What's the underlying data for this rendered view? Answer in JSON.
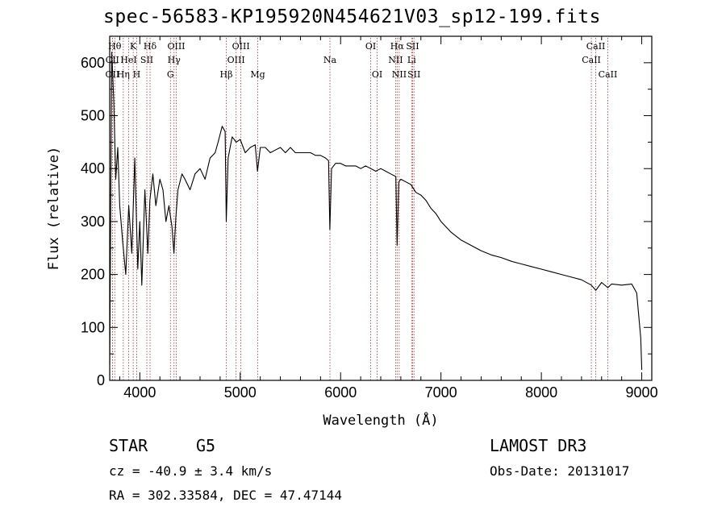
{
  "chart_data": {
    "type": "line",
    "title": "spec-56583-KP195920N454621V03_sp12-199.fits",
    "xlabel": "Wavelength (Å)",
    "ylabel": "Flux (relative)",
    "xlim": [
      3700,
      9100
    ],
    "ylim": [
      0,
      650
    ],
    "xticks": [
      4000,
      5000,
      6000,
      7000,
      8000,
      9000
    ],
    "yticks": [
      0,
      100,
      200,
      300,
      400,
      500,
      600
    ],
    "series": [
      {
        "name": "flux",
        "color": "#000000",
        "points": [
          [
            3700,
            30
          ],
          [
            3720,
            620
          ],
          [
            3740,
            530
          ],
          [
            3760,
            380
          ],
          [
            3780,
            440
          ],
          [
            3800,
            330
          ],
          [
            3830,
            260
          ],
          [
            3860,
            200
          ],
          [
            3890,
            330
          ],
          [
            3920,
            240
          ],
          [
            3950,
            420
          ],
          [
            3980,
            210
          ],
          [
            4000,
            300
          ],
          [
            4020,
            180
          ],
          [
            4050,
            360
          ],
          [
            4080,
            240
          ],
          [
            4100,
            340
          ],
          [
            4130,
            390
          ],
          [
            4160,
            330
          ],
          [
            4200,
            380
          ],
          [
            4230,
            360
          ],
          [
            4260,
            300
          ],
          [
            4290,
            330
          ],
          [
            4320,
            290
          ],
          [
            4340,
            240
          ],
          [
            4360,
            310
          ],
          [
            4380,
            360
          ],
          [
            4420,
            390
          ],
          [
            4450,
            380
          ],
          [
            4500,
            360
          ],
          [
            4550,
            390
          ],
          [
            4600,
            400
          ],
          [
            4650,
            380
          ],
          [
            4700,
            420
          ],
          [
            4750,
            430
          ],
          [
            4780,
            450
          ],
          [
            4820,
            480
          ],
          [
            4850,
            470
          ],
          [
            4861,
            300
          ],
          [
            4880,
            420
          ],
          [
            4920,
            460
          ],
          [
            4960,
            450
          ],
          [
            5000,
            455
          ],
          [
            5050,
            430
          ],
          [
            5100,
            440
          ],
          [
            5150,
            445
          ],
          [
            5172,
            395
          ],
          [
            5200,
            440
          ],
          [
            5250,
            440
          ],
          [
            5300,
            430
          ],
          [
            5350,
            435
          ],
          [
            5400,
            440
          ],
          [
            5450,
            430
          ],
          [
            5500,
            440
          ],
          [
            5550,
            430
          ],
          [
            5600,
            430
          ],
          [
            5650,
            430
          ],
          [
            5700,
            430
          ],
          [
            5750,
            425
          ],
          [
            5800,
            425
          ],
          [
            5850,
            420
          ],
          [
            5880,
            415
          ],
          [
            5893,
            285
          ],
          [
            5910,
            400
          ],
          [
            5950,
            410
          ],
          [
            6000,
            410
          ],
          [
            6050,
            405
          ],
          [
            6100,
            405
          ],
          [
            6150,
            405
          ],
          [
            6200,
            400
          ],
          [
            6250,
            405
          ],
          [
            6300,
            400
          ],
          [
            6350,
            395
          ],
          [
            6400,
            400
          ],
          [
            6450,
            395
          ],
          [
            6500,
            390
          ],
          [
            6550,
            385
          ],
          [
            6563,
            255
          ],
          [
            6580,
            375
          ],
          [
            6600,
            380
          ],
          [
            6650,
            375
          ],
          [
            6700,
            370
          ],
          [
            6750,
            355
          ],
          [
            6800,
            350
          ],
          [
            6850,
            340
          ],
          [
            6900,
            325
          ],
          [
            6950,
            315
          ],
          [
            7000,
            300
          ],
          [
            7100,
            280
          ],
          [
            7200,
            265
          ],
          [
            7300,
            255
          ],
          [
            7400,
            245
          ],
          [
            7500,
            237
          ],
          [
            7600,
            232
          ],
          [
            7700,
            225
          ],
          [
            7800,
            220
          ],
          [
            7900,
            215
          ],
          [
            8000,
            210
          ],
          [
            8100,
            205
          ],
          [
            8200,
            200
          ],
          [
            8300,
            195
          ],
          [
            8400,
            190
          ],
          [
            8498,
            180
          ],
          [
            8542,
            170
          ],
          [
            8600,
            185
          ],
          [
            8662,
            175
          ],
          [
            8700,
            182
          ],
          [
            8800,
            180
          ],
          [
            8900,
            182
          ],
          [
            8950,
            165
          ],
          [
            8990,
            80
          ],
          [
            9000,
            20
          ]
        ]
      }
    ],
    "lines": [
      {
        "label": "Hθ",
        "x": 3750,
        "row": 1
      },
      {
        "label": "CII",
        "x": 3727,
        "row": 2
      },
      {
        "label": "OII",
        "x": 3727,
        "row": 3
      },
      {
        "label": "Hη",
        "x": 3835,
        "row": 3
      },
      {
        "label": "HeI",
        "x": 3889,
        "row": 2
      },
      {
        "label": "K",
        "x": 3934,
        "row": 1
      },
      {
        "label": "H",
        "x": 3969,
        "row": 3
      },
      {
        "label": "SII",
        "x": 4070,
        "row": 2
      },
      {
        "label": "Hδ",
        "x": 4102,
        "row": 1
      },
      {
        "label": "Hγ",
        "x": 4341,
        "row": 2
      },
      {
        "label": "G",
        "x": 4305,
        "row": 3
      },
      {
        "label": "OIII",
        "x": 4363,
        "row": 1
      },
      {
        "label": "Hβ",
        "x": 4861,
        "row": 3
      },
      {
        "label": "OIII",
        "x": 5007,
        "row": 1
      },
      {
        "label": "OIII",
        "x": 4959,
        "row": 2
      },
      {
        "label": "Mg",
        "x": 5175,
        "row": 3
      },
      {
        "label": "Na",
        "x": 5894,
        "row": 2
      },
      {
        "label": "OI",
        "x": 6300,
        "row": 1
      },
      {
        "label": "OI",
        "x": 6364,
        "row": 3
      },
      {
        "label": "Hα",
        "x": 6563,
        "row": 1
      },
      {
        "label": "NII",
        "x": 6548,
        "row": 2
      },
      {
        "label": "NII",
        "x": 6584,
        "row": 3
      },
      {
        "label": "SII",
        "x": 6717,
        "row": 1
      },
      {
        "label": "Li",
        "x": 6708,
        "row": 2
      },
      {
        "label": "SII",
        "x": 6731,
        "row": 3
      },
      {
        "label": "CaII",
        "x": 8542,
        "row": 1
      },
      {
        "label": "CaII",
        "x": 8498,
        "row": 2
      },
      {
        "label": "CaII",
        "x": 8662,
        "row": 3
      }
    ]
  },
  "info": {
    "object_class": "STAR",
    "subclass": "G5",
    "survey": "LAMOST DR3",
    "redshift": "cz = -40.9 ± 3.4 km/s",
    "obs_date": "Obs-Date: 20131017",
    "coords": "RA = 302.33584, DEC =  47.47144"
  },
  "colors": {
    "line_marker": "#b03030",
    "spectrum": "#000000"
  }
}
